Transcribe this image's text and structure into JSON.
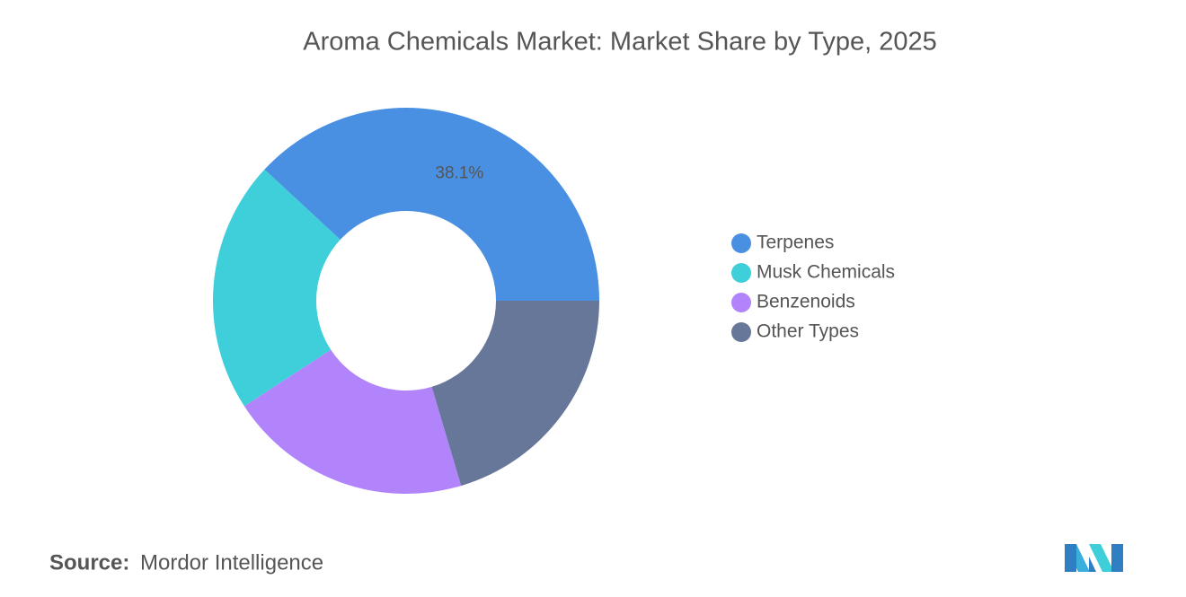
{
  "chart_data": {
    "type": "donut",
    "title": "Aroma Chemicals Market: Market Share by Type, 2025",
    "categories": [
      "Terpenes",
      "Musk Chemicals",
      "Benzenoids",
      "Other Types"
    ],
    "values": [
      38.1,
      21.1,
      20.4,
      20.4
    ],
    "value_labels": [
      "38.1%",
      null,
      null,
      null
    ],
    "colors": [
      "#4a90e2",
      "#3ecfda",
      "#b184fb",
      "#667799"
    ],
    "legend": "right",
    "source_label": "Source:",
    "source": "Mordor Intelligence"
  }
}
